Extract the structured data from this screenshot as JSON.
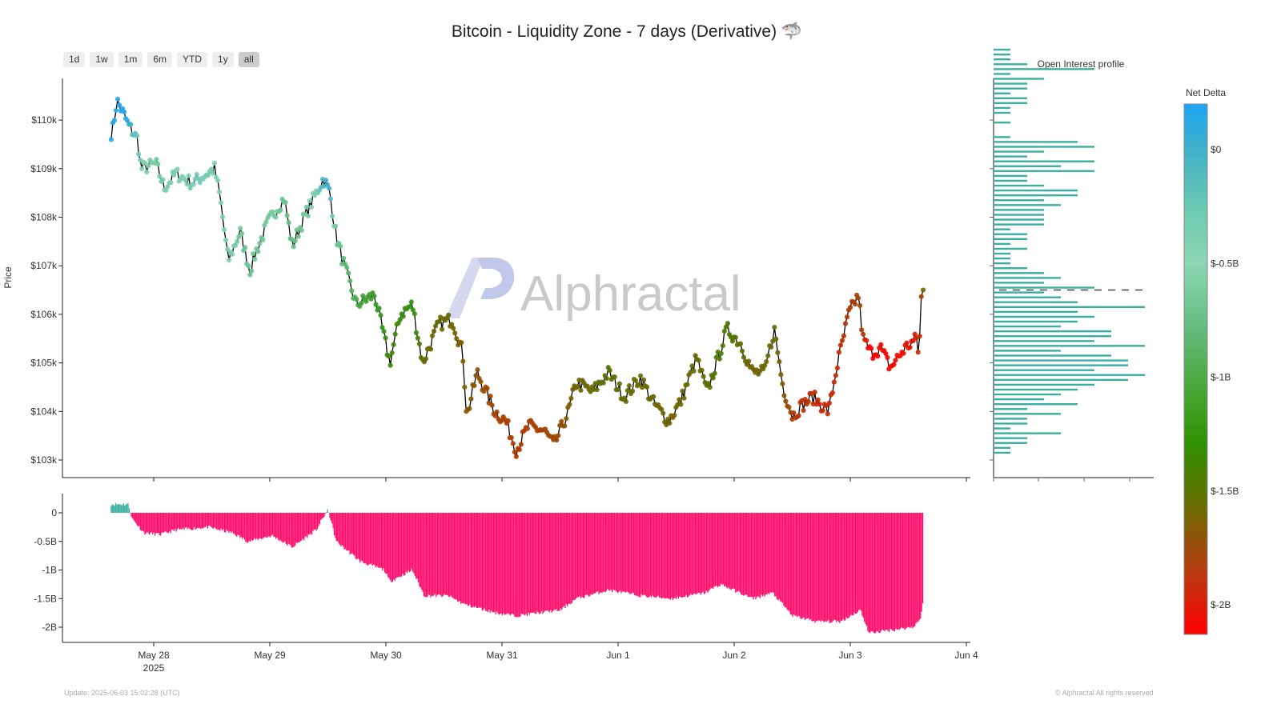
{
  "title": "Bitcoin - Liquidity Zone - 7 days (Derivative) 🦈",
  "range_buttons": [
    "1d",
    "1w",
    "1m",
    "6m",
    "YTD",
    "1y",
    "all"
  ],
  "selected_range": "all",
  "footer": {
    "update": "Update: 2025-06-03 15:02:28 (UTC)",
    "copyright": "© Alphractal All rights reserved"
  },
  "watermark": "Alphractal",
  "chart_data": [
    {
      "type": "scatter",
      "title": "Price",
      "ylabel": "Price",
      "ylim": [
        102.6,
        111.2
      ],
      "yticks": [
        {
          "v": 103,
          "l": "$103k"
        },
        {
          "v": 104,
          "l": "$104k"
        },
        {
          "v": 105,
          "l": "$105k"
        },
        {
          "v": 106,
          "l": "$106k"
        },
        {
          "v": 107,
          "l": "$107k"
        },
        {
          "v": 108,
          "l": "$108k"
        },
        {
          "v": 109,
          "l": "$109k"
        },
        {
          "v": 110,
          "l": "$110k"
        }
      ],
      "xticks": [
        {
          "d": 0,
          "l": "May 28",
          "l2": "2025"
        },
        {
          "d": 1,
          "l": "May 29"
        },
        {
          "d": 2,
          "l": "May 30"
        },
        {
          "d": 3,
          "l": "May 31"
        },
        {
          "d": 4,
          "l": "Jun 1"
        },
        {
          "d": 5,
          "l": "Jun 2"
        },
        {
          "d": 6,
          "l": "Jun 3"
        },
        {
          "d": 7,
          "l": "Jun 4"
        }
      ],
      "x_unit": "days since May 28 2025 00:00 UTC",
      "price_k": [
        [
          -0.366,
          109.6
        ],
        [
          -0.317,
          110.4
        ],
        [
          -0.255,
          110.1
        ],
        [
          -0.22,
          109.9
        ],
        [
          -0.138,
          109.6
        ],
        [
          -0.11,
          109.0
        ],
        [
          0.02,
          109.1
        ],
        [
          0.09,
          108.6
        ],
        [
          0.193,
          108.9
        ],
        [
          0.33,
          108.7
        ],
        [
          0.524,
          109.0
        ],
        [
          0.572,
          108.4
        ],
        [
          0.641,
          107.1
        ],
        [
          0.745,
          107.7
        ],
        [
          0.828,
          106.9
        ],
        [
          0.883,
          107.3
        ],
        [
          0.986,
          107.9
        ],
        [
          1.124,
          108.4
        ],
        [
          1.193,
          107.4
        ],
        [
          1.297,
          108.0
        ],
        [
          1.4,
          108.5
        ],
        [
          1.462,
          108.8
        ],
        [
          1.517,
          108.5
        ],
        [
          1.572,
          107.6
        ],
        [
          1.641,
          107.0
        ],
        [
          1.745,
          106.2
        ],
        [
          1.903,
          106.4
        ],
        [
          2.034,
          105.0
        ],
        [
          2.124,
          106.0
        ],
        [
          2.228,
          106.2
        ],
        [
          2.317,
          105.0
        ],
        [
          2.455,
          105.8
        ],
        [
          2.572,
          105.9
        ],
        [
          2.662,
          105.2
        ],
        [
          2.697,
          103.9
        ],
        [
          2.786,
          104.8
        ],
        [
          2.938,
          104.0
        ],
        [
          3.034,
          103.8
        ],
        [
          3.124,
          103.2
        ],
        [
          3.228,
          103.7
        ],
        [
          3.366,
          103.6
        ],
        [
          3.448,
          103.3
        ],
        [
          3.572,
          104.0
        ],
        [
          3.641,
          104.6
        ],
        [
          3.779,
          104.4
        ],
        [
          3.917,
          104.8
        ],
        [
          4.055,
          104.3
        ],
        [
          4.193,
          104.7
        ],
        [
          4.297,
          104.2
        ],
        [
          4.434,
          103.8
        ],
        [
          4.538,
          104.2
        ],
        [
          4.676,
          105.1
        ],
        [
          4.766,
          104.4
        ],
        [
          4.848,
          105.0
        ],
        [
          4.938,
          105.7
        ],
        [
          5.055,
          105.4
        ],
        [
          5.159,
          104.8
        ],
        [
          5.262,
          104.8
        ],
        [
          5.345,
          105.7
        ],
        [
          5.421,
          104.5
        ],
        [
          5.503,
          103.9
        ],
        [
          5.572,
          104.1
        ],
        [
          5.676,
          104.3
        ],
        [
          5.814,
          104.0
        ],
        [
          5.883,
          104.9
        ],
        [
          5.986,
          106.0
        ],
        [
          6.069,
          106.4
        ],
        [
          6.11,
          105.5
        ],
        [
          6.179,
          105.2
        ],
        [
          6.262,
          105.3
        ],
        [
          6.345,
          104.9
        ],
        [
          6.469,
          105.3
        ],
        [
          6.572,
          105.5
        ],
        [
          6.593,
          105.1
        ],
        [
          6.607,
          106.3
        ],
        [
          6.628,
          106.5
        ]
      ],
      "net_delta_B": [
        [
          -0.366,
          0.15
        ],
        [
          -0.22,
          0.15
        ],
        [
          -0.186,
          -0.1
        ],
        [
          -0.083,
          -0.35
        ],
        [
          0.055,
          -0.38
        ],
        [
          0.193,
          -0.3
        ],
        [
          0.469,
          -0.25
        ],
        [
          0.676,
          -0.35
        ],
        [
          0.814,
          -0.5
        ],
        [
          1.021,
          -0.4
        ],
        [
          1.193,
          -0.6
        ],
        [
          1.4,
          -0.3
        ],
        [
          1.469,
          -0.05
        ],
        [
          1.503,
          0.05
        ],
        [
          1.572,
          -0.5
        ],
        [
          1.779,
          -0.85
        ],
        [
          1.986,
          -1.0
        ],
        [
          2.034,
          -1.2
        ],
        [
          2.228,
          -1.0
        ],
        [
          2.331,
          -1.45
        ],
        [
          2.538,
          -1.45
        ],
        [
          2.676,
          -1.6
        ],
        [
          2.952,
          -1.75
        ],
        [
          3.124,
          -1.8
        ],
        [
          3.503,
          -1.7
        ],
        [
          3.641,
          -1.5
        ],
        [
          3.917,
          -1.35
        ],
        [
          4.193,
          -1.45
        ],
        [
          4.469,
          -1.5
        ],
        [
          4.745,
          -1.4
        ],
        [
          4.883,
          -1.25
        ],
        [
          5.159,
          -1.5
        ],
        [
          5.331,
          -1.4
        ],
        [
          5.503,
          -1.8
        ],
        [
          5.71,
          -1.9
        ],
        [
          5.917,
          -1.9
        ],
        [
          6.09,
          -1.7
        ],
        [
          6.159,
          -2.1
        ],
        [
          6.538,
          -2.0
        ],
        [
          6.607,
          -1.85
        ],
        [
          6.628,
          -1.5
        ]
      ]
    },
    {
      "type": "bar",
      "title": "Net Delta",
      "yticks": [
        {
          "v": 0,
          "l": "0"
        },
        {
          "v": -0.5,
          "l": "-0.5B"
        },
        {
          "v": -1,
          "l": "-1B"
        },
        {
          "v": -1.5,
          "l": "-1.5B"
        },
        {
          "v": -2,
          "l": "-2B"
        }
      ],
      "ylim": [
        -2.25,
        0.35
      ]
    },
    {
      "type": "bar",
      "title": "Open Interest profile",
      "orientation": "horizontal",
      "price_start_k": 103.15,
      "price_step_k": 0.1,
      "values": [
        1,
        1,
        2,
        2,
        4,
        1,
        2,
        2,
        4,
        2,
        5,
        3,
        4,
        5,
        6,
        8,
        9,
        6,
        8,
        8,
        7,
        4,
        9,
        6,
        7,
        7,
        4,
        5,
        6,
        5,
        9,
        5,
        4,
        3,
        6,
        3,
        4,
        3,
        2,
        1,
        1,
        1,
        2,
        1,
        2,
        2,
        1,
        3,
        3,
        3,
        3,
        4,
        3,
        5,
        5,
        3,
        2,
        2,
        6,
        4,
        6,
        2,
        3,
        6,
        5,
        1,
        0,
        0,
        1,
        0,
        1,
        1,
        2,
        2,
        1,
        2,
        2,
        3,
        1,
        6,
        2,
        1,
        1,
        1
      ]
    },
    {
      "type": "colorbar",
      "title": "Net Delta",
      "ticks": [
        {
          "v": 0,
          "l": "$0"
        },
        {
          "v": -0.5,
          "l": "$-0.5B"
        },
        {
          "v": -1,
          "l": "$-1B"
        },
        {
          "v": -1.5,
          "l": "$-1.5B"
        },
        {
          "v": -2,
          "l": "$-2B"
        }
      ],
      "range": [
        -2.13,
        0.2
      ]
    }
  ],
  "colors": {
    "negative_bar": "#ff0a6a",
    "positive_bar": "#3aaea0",
    "oi_bar": "#3aaea0",
    "line": "#000000"
  }
}
